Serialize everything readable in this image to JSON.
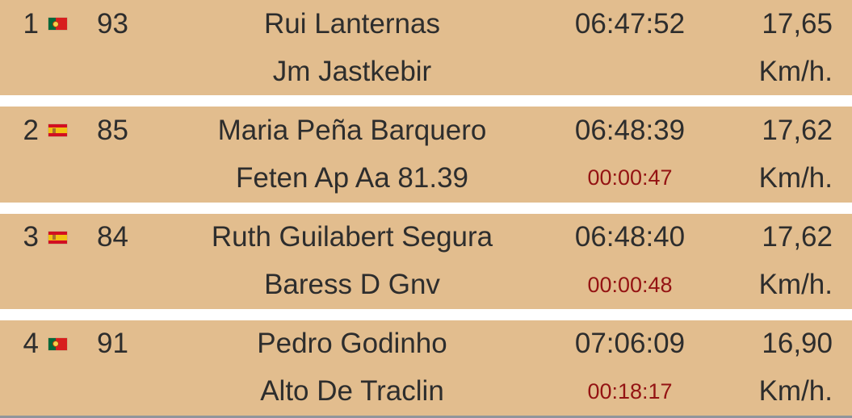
{
  "colors": {
    "row_background": "#e2bd8e",
    "text": "#2d2d2d",
    "gap_text": "#941313",
    "separator": "#ffffff"
  },
  "rows": [
    {
      "rank": "1",
      "flag_country": "pt",
      "flag_icon_name": "portugal-flag-icon",
      "bib": "93",
      "name": "Rui Lanternas",
      "team": "Jm Jastkebir",
      "time": "06:47:52",
      "gap": "",
      "speed": "17,65",
      "speed_unit": "Km/h."
    },
    {
      "rank": "2",
      "flag_country": "es",
      "flag_icon_name": "spain-flag-icon",
      "bib": "85",
      "name": "Maria Peña Barquero",
      "team": "Feten Ap Aa 81.39",
      "time": "06:48:39",
      "gap": "00:00:47",
      "speed": "17,62",
      "speed_unit": "Km/h."
    },
    {
      "rank": "3",
      "flag_country": "es",
      "flag_icon_name": "spain-flag-icon",
      "bib": "84",
      "name": "Ruth Guilabert Segura",
      "team": "Baress D Gnv",
      "time": "06:48:40",
      "gap": "00:00:48",
      "speed": "17,62",
      "speed_unit": "Km/h."
    },
    {
      "rank": "4",
      "flag_country": "pt",
      "flag_icon_name": "portugal-flag-icon",
      "bib": "91",
      "name": "Pedro Godinho",
      "team": "Alto De Traclin",
      "time": "07:06:09",
      "gap": "00:18:17",
      "speed": "16,90",
      "speed_unit": "Km/h."
    }
  ]
}
